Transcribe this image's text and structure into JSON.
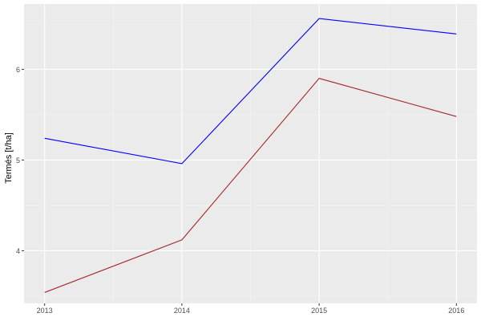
{
  "chart_data": {
    "type": "line",
    "title": "",
    "xlabel": "",
    "ylabel": "Termés [t/ha]",
    "x": [
      2013,
      2014,
      2015,
      2016
    ],
    "xticks": [
      "2013",
      "2014",
      "2015",
      "2016"
    ],
    "yticks": [
      "4",
      "5",
      "6"
    ],
    "xlim": [
      2012.85,
      2016.15
    ],
    "ylim": [
      3.42,
      6.72
    ],
    "grid": true,
    "series": [
      {
        "color": "#0000ff",
        "values": [
          5.24,
          4.96,
          6.56,
          6.39
        ]
      },
      {
        "color": "#a52a2a",
        "values": [
          3.54,
          4.12,
          5.9,
          5.48
        ]
      }
    ]
  }
}
